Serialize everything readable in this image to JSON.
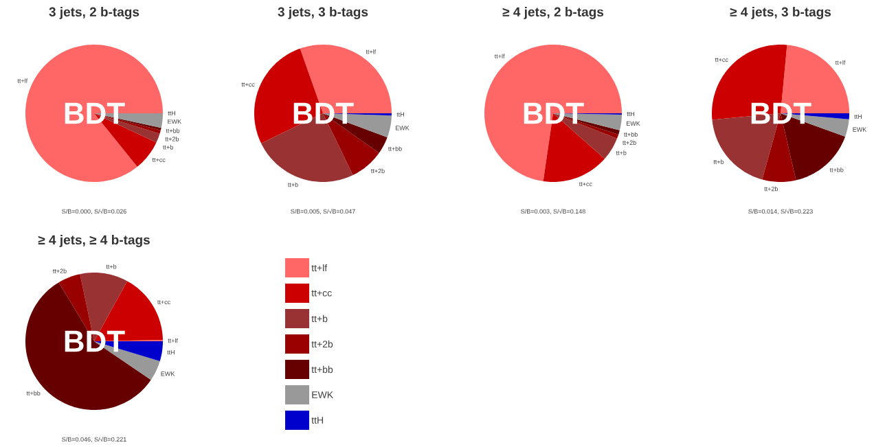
{
  "chart_data": [
    {
      "type": "pie",
      "title": "3 jets, 2 b-tags",
      "categories": [
        "tt+lf",
        "tt+cc",
        "tt+b",
        "tt+2b",
        "tt+bb",
        "EWK",
        "ttH"
      ],
      "values": [
        85.8,
        7.2,
        2.2,
        0.8,
        0.6,
        3.4,
        0
      ],
      "colors": [
        "#ff6666",
        "#cc0000",
        "#993333",
        "#990000",
        "#660000",
        "#999999",
        "#0000cc"
      ],
      "annotations": [
        "BDT",
        "S/B=0.000, S/√B=0.026"
      ]
    },
    {
      "type": "pie",
      "title": "3 jets, 3 b-tags",
      "categories": [
        "tt+lf",
        "tt+cc",
        "tt+b",
        "tt+2b",
        "tt+bb",
        "EWK",
        "ttH"
      ],
      "values": [
        30.4,
        26.8,
        25,
        8,
        4.1,
        5.2,
        0.5
      ],
      "colors": [
        "#ff6666",
        "#cc0000",
        "#993333",
        "#990000",
        "#660000",
        "#999999",
        "#0000cc"
      ],
      "annotations": [
        "BDT",
        "S/B=0.005, S/√B=0.047"
      ]
    },
    {
      "type": "pie",
      "title": "≥ 4 jets, 2 b-tags",
      "categories": [
        "tt+lf",
        "tt+cc",
        "tt+b",
        "tt+2b",
        "tt+bb",
        "EWK",
        "ttH"
      ],
      "values": [
        72.7,
        15.8,
        5.5,
        1,
        1,
        3.7,
        0.3
      ],
      "colors": [
        "#ff6666",
        "#cc0000",
        "#993333",
        "#990000",
        "#660000",
        "#999999",
        "#0000cc"
      ],
      "annotations": [
        "BDT",
        "S/B=0.003, S/√B=0.148"
      ]
    },
    {
      "type": "pie",
      "title": "≥ 4 jets, 3 b-tags",
      "categories": [
        "tt+lf",
        "tt+cc",
        "tt+b",
        "tt+2b",
        "tt+bb",
        "EWK",
        "ttH"
      ],
      "values": [
        23.5,
        28,
        19.2,
        7.9,
        15.9,
        4.1,
        1.4
      ],
      "colors": [
        "#ff6666",
        "#cc0000",
        "#993333",
        "#990000",
        "#660000",
        "#999999",
        "#0000cc"
      ],
      "annotations": [
        "BDT",
        "S/B=0.014, S/√B=0.223"
      ]
    },
    {
      "type": "pie",
      "title": "≥ 4 jets, ≥ 4 b-tags",
      "categories": [
        "tt+lf",
        "tt+cc",
        "tt+b",
        "tt+2b",
        "tt+bb",
        "EWK",
        "ttH"
      ],
      "values": [
        0.3,
        16.7,
        11.3,
        5.3,
        56.9,
        4.8,
        4.7
      ],
      "colors": [
        "#ff6666",
        "#cc0000",
        "#993333",
        "#990000",
        "#660000",
        "#999999",
        "#0000cc"
      ],
      "annotations": [
        "BDT",
        "S/B=0.046, S/√B=0.221"
      ],
      "legend": "right"
    }
  ]
}
